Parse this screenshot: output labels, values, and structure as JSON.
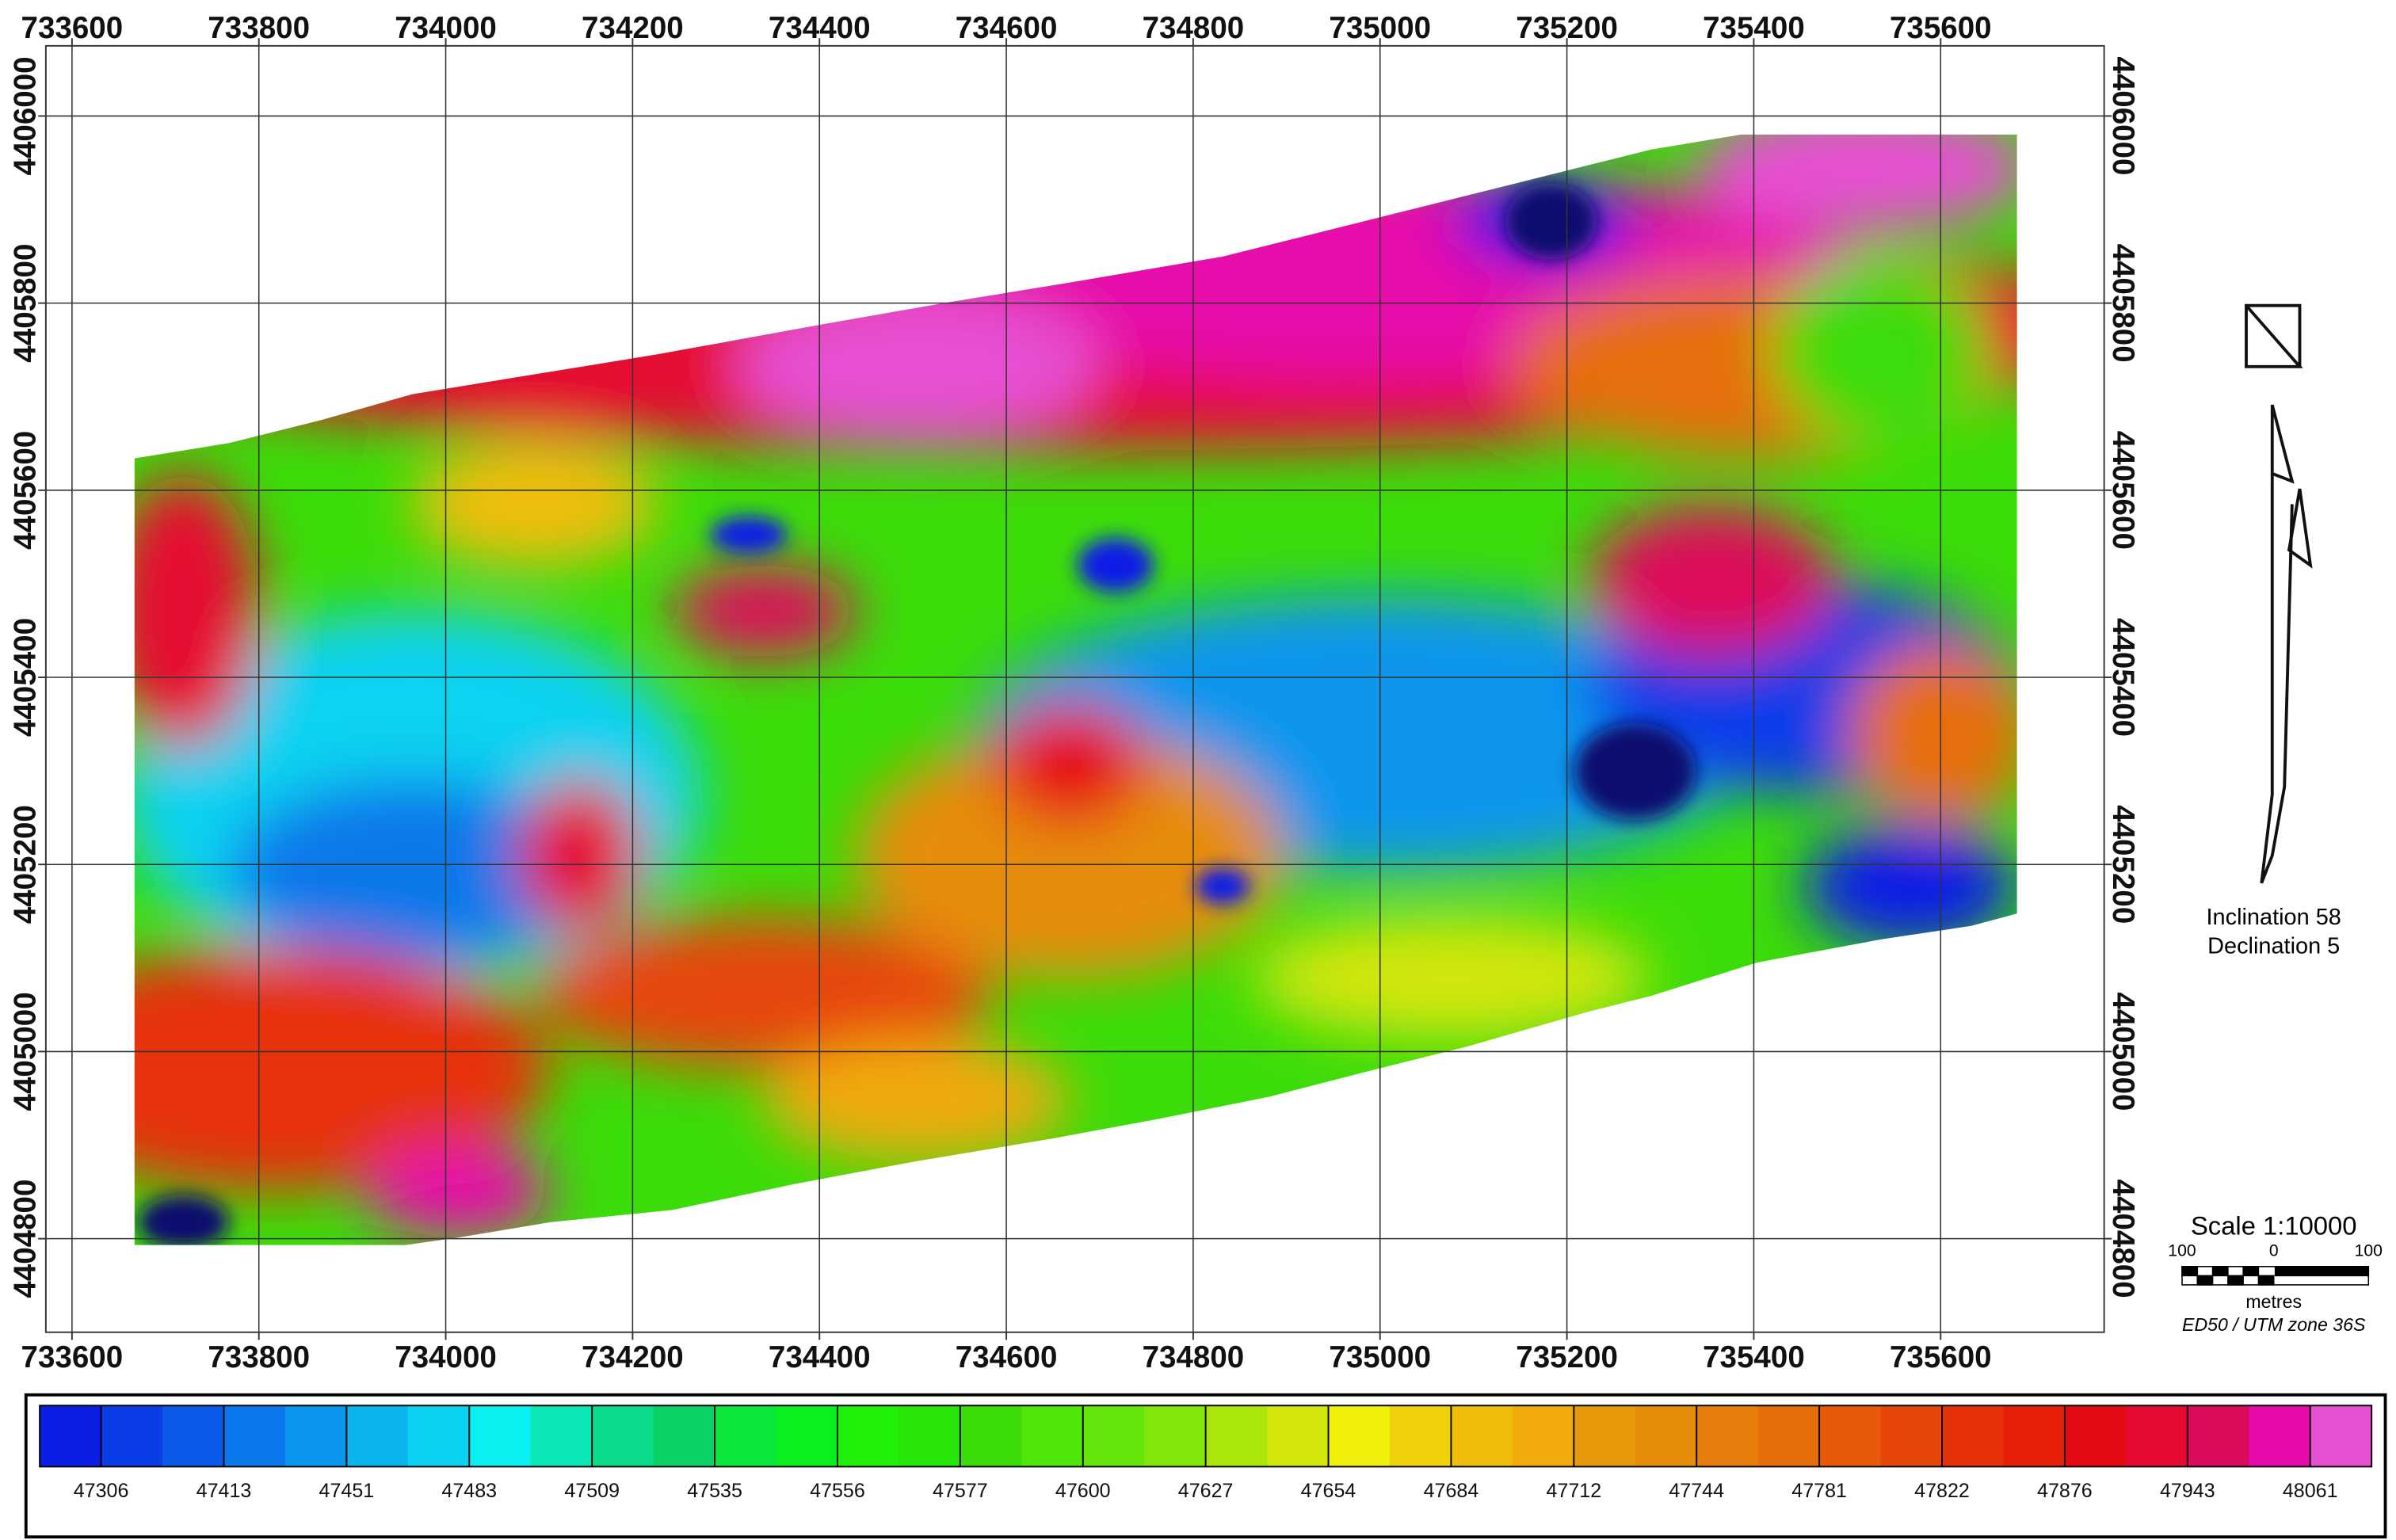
{
  "map": {
    "xlim": [
      733572,
      735775
    ],
    "ylim": [
      4404700,
      4406075
    ],
    "xticks": [
      733600,
      733800,
      734000,
      734200,
      734400,
      734600,
      734800,
      735000,
      735200,
      735400,
      735600
    ],
    "yticks": [
      4404800,
      4405000,
      4405200,
      4405400,
      4405600,
      4405800,
      4406000
    ],
    "grid": true,
    "inclination": "Inclination 58",
    "declination": "Declination 5",
    "scale": {
      "title": "Scale 1:10000",
      "left": "100",
      "middle": "0",
      "right": "100",
      "unit": "metres",
      "projection": "ED50 / UTM zone 36S"
    },
    "colorbar": {
      "labels": [
        "47306",
        "47413",
        "47451",
        "47483",
        "47509",
        "47535",
        "47556",
        "47577",
        "47600",
        "47627",
        "47654",
        "47684",
        "47712",
        "47744",
        "47781",
        "47822",
        "47876",
        "47943",
        "48061"
      ],
      "colors": [
        "#0a1ee6",
        "#0a3ce8",
        "#0a5ae8",
        "#0a78ea",
        "#0a96ec",
        "#0ab4ee",
        "#0ad2f0",
        "#0af0f0",
        "#0ae6b4",
        "#0adc8c",
        "#0ad264",
        "#0ae63c",
        "#0af01e",
        "#1ef00a",
        "#28e60a",
        "#3cdc0a",
        "#50e60a",
        "#64e60a",
        "#82e60a",
        "#aae60a",
        "#d2e60a",
        "#f0f00a",
        "#f0d20a",
        "#f0be0a",
        "#f0aa0a",
        "#e69a0a",
        "#e68c0a",
        "#e67d0a",
        "#e66e0a",
        "#e65a0a",
        "#e6460a",
        "#e6320a",
        "#e61e0a",
        "#e60a14",
        "#e60a32",
        "#dc0a5a",
        "#e60aaa",
        "#e650d2"
      ]
    }
  }
}
